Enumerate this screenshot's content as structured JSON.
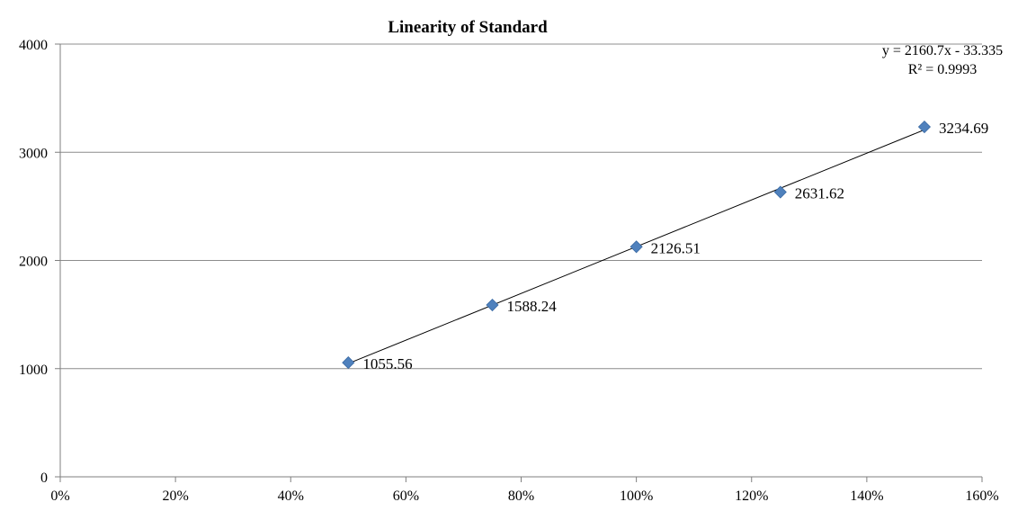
{
  "chart_data": {
    "type": "scatter",
    "title": "Linearity of Standard",
    "xlabel": "",
    "ylabel": "",
    "x_tick_labels": [
      "0%",
      "20%",
      "40%",
      "60%",
      "80%",
      "100%",
      "120%",
      "140%",
      "160%"
    ],
    "y_tick_labels": [
      "0",
      "1000",
      "2000",
      "3000",
      "4000"
    ],
    "xlim": [
      0,
      1.6
    ],
    "ylim": [
      0,
      4000
    ],
    "x_ticks": [
      0,
      0.2,
      0.4,
      0.6,
      0.8,
      1.0,
      1.2,
      1.4,
      1.6
    ],
    "y_ticks": [
      0,
      1000,
      2000,
      3000,
      4000
    ],
    "grid": "horizontal",
    "legend": "none",
    "point_color": "#4F81BD",
    "series": [
      {
        "x": [
          0.5,
          0.75,
          1.0,
          1.25,
          1.5
        ],
        "y": [
          1055.56,
          1588.24,
          2126.51,
          2631.62,
          3234.69
        ],
        "labels": [
          "1055.56",
          "1588.24",
          "2126.51",
          "2631.62",
          "3234.69"
        ]
      }
    ],
    "trendline": {
      "slope": 2160.7,
      "intercept": -33.335,
      "equation": "y = 2160.7x - 33.335",
      "r_squared": "R² = 0.9993"
    }
  }
}
